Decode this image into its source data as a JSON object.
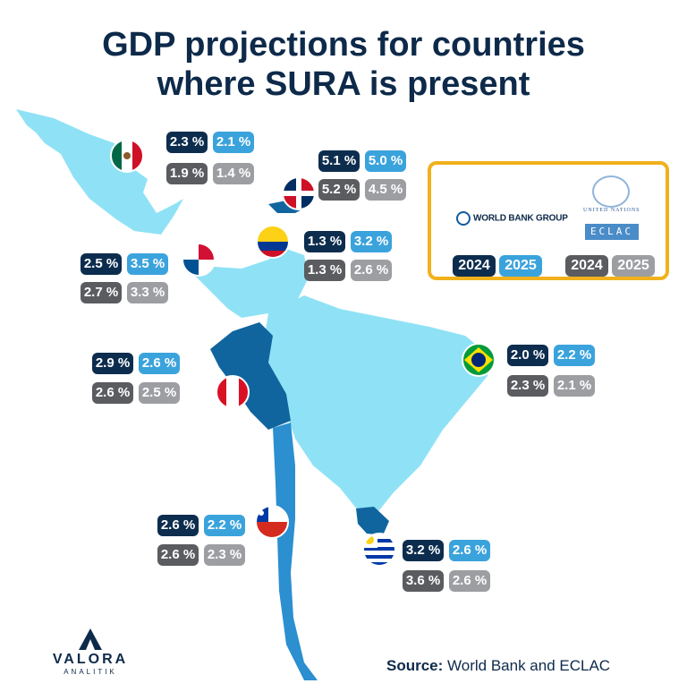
{
  "title": {
    "line1": "GDP projections for countries",
    "line2": "where SURA is present"
  },
  "legend": {
    "world_bank": "WORLD BANK GROUP",
    "un": "UNITED NATIONS",
    "eclac": "ECLAC",
    "wb_2024": "2024",
    "wb_2025": "2025",
    "ec_2024": "2024",
    "ec_2025": "2025"
  },
  "colors": {
    "wb_2024": "#0d2d4e",
    "wb_2025": "#3ba3dc",
    "ec_2024": "#5a5c60",
    "ec_2025": "#9c9ea2",
    "legend_border": "#f1b11c",
    "map_light": "#8fe2f5",
    "map_mid": "#2b8fd0",
    "map_dark": "#11659e"
  },
  "countries": [
    {
      "name": "Mexico",
      "flag": "mexico-flag-icon",
      "wb_2024": "2.3 %",
      "wb_2025": "2.1 %",
      "ec_2024": "1.9 %",
      "ec_2025": "1.4 %"
    },
    {
      "name": "Dominican Republic",
      "flag": "dominican-republic-flag-icon",
      "wb_2024": "5.1 %",
      "wb_2025": "5.0 %",
      "ec_2024": "5.2 %",
      "ec_2025": "4.5 %"
    },
    {
      "name": "Colombia",
      "flag": "colombia-flag-icon",
      "wb_2024": "1.3 %",
      "wb_2025": "3.2 %",
      "ec_2024": "1.3 %",
      "ec_2025": "2.6 %"
    },
    {
      "name": "Panama",
      "flag": "panama-flag-icon",
      "wb_2024": "2.5 %",
      "wb_2025": "3.5 %",
      "ec_2024": "2.7 %",
      "ec_2025": "3.3 %"
    },
    {
      "name": "Peru",
      "flag": "peru-flag-icon",
      "wb_2024": "2.9 %",
      "wb_2025": "2.6 %",
      "ec_2024": "2.6 %",
      "ec_2025": "2.5 %"
    },
    {
      "name": "Brazil",
      "flag": "brazil-flag-icon",
      "wb_2024": "2.0 %",
      "wb_2025": "2.2 %",
      "ec_2024": "2.3 %",
      "ec_2025": "2.1 %"
    },
    {
      "name": "Chile",
      "flag": "chile-flag-icon",
      "wb_2024": "2.6 %",
      "wb_2025": "2.2 %",
      "ec_2024": "2.6 %",
      "ec_2025": "2.3 %"
    },
    {
      "name": "Uruguay",
      "flag": "uruguay-flag-icon",
      "wb_2024": "3.2 %",
      "wb_2025": "2.6 %",
      "ec_2024": "3.6 %",
      "ec_2025": "2.6 %"
    }
  ],
  "source": {
    "label": "Source:",
    "text": " World Bank and ECLAC"
  },
  "logo": {
    "name": "VALORA",
    "sub": "ANALITIK"
  }
}
